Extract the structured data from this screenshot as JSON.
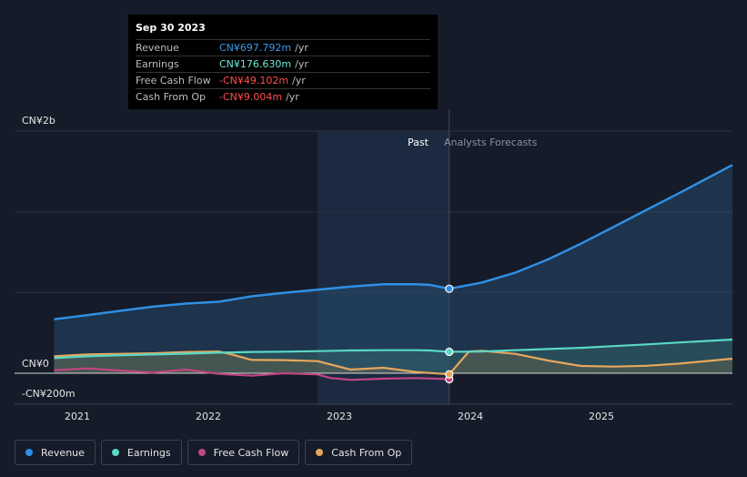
{
  "tooltip": {
    "date": "Sep 30 2023",
    "rows": [
      {
        "label": "Revenue",
        "value": "CN¥697.792m",
        "unit": "/yr",
        "color": "#3b9ae8"
      },
      {
        "label": "Earnings",
        "value": "CN¥176.630m",
        "unit": "/yr",
        "color": "#6ce8d0"
      },
      {
        "label": "Free Cash Flow",
        "value": "-CN¥49.102m",
        "unit": "/yr",
        "color": "#ff4d4d"
      },
      {
        "label": "Cash From Op",
        "value": "-CN¥9.004m",
        "unit": "/yr",
        "color": "#ff4d4d"
      }
    ]
  },
  "regions": {
    "past": "Past",
    "forecast": "Analysts Forecasts"
  },
  "chart_data": {
    "type": "line",
    "title": "",
    "y_axis_labels": [
      "CN¥2b",
      "CN¥0",
      "-CN¥200m"
    ],
    "ylim": [
      -200,
      2000
    ],
    "x_tick_labels": [
      "2021",
      "2022",
      "2023",
      "2024",
      "2025"
    ],
    "x_ticks": [
      2021.0,
      2022.0,
      2023.0,
      2024.0,
      2025.0
    ],
    "xlim": [
      2020.45,
      2025.9
    ],
    "past_start": 2022.75,
    "divider": 2023.75,
    "series": [
      {
        "name": "Revenue",
        "color": "#2f8fe4",
        "x": [
          2020.75,
          2021.0,
          2021.25,
          2021.5,
          2021.75,
          2022.0,
          2022.25,
          2022.5,
          2022.75,
          2023.0,
          2023.25,
          2023.5,
          2023.6,
          2023.75,
          2024.0,
          2024.25,
          2024.5,
          2024.75,
          2025.0,
          2025.25,
          2025.5,
          2025.9
        ],
        "y": [
          445,
          480,
          515,
          550,
          575,
          590,
          635,
          665,
          690,
          715,
          735,
          735,
          730,
          698,
          750,
          830,
          940,
          1070,
          1210,
          1350,
          1490,
          1720
        ]
      },
      {
        "name": "Earnings",
        "color": "#5ad8c6",
        "x": [
          2020.75,
          2021.0,
          2021.25,
          2021.5,
          2021.75,
          2022.0,
          2022.25,
          2022.5,
          2022.75,
          2023.0,
          2023.25,
          2023.5,
          2023.6,
          2023.75,
          2024.0,
          2024.25,
          2024.5,
          2024.75,
          2025.0,
          2025.25,
          2025.5,
          2025.9
        ],
        "y": [
          125,
          140,
          148,
          155,
          162,
          170,
          176,
          178,
          183,
          188,
          190,
          190,
          188,
          177,
          180,
          190,
          200,
          210,
          224,
          238,
          254,
          278
        ]
      },
      {
        "name": "Free Cash Flow",
        "color": "#c24583",
        "x": [
          2020.75,
          2021.0,
          2021.25,
          2021.5,
          2021.75,
          2022.0,
          2022.25,
          2022.5,
          2022.75,
          2022.85,
          2023.0,
          2023.25,
          2023.5,
          2023.75
        ],
        "y": [
          25,
          40,
          22,
          5,
          30,
          -5,
          -20,
          0,
          -10,
          -40,
          -55,
          -45,
          -40,
          -49
        ]
      },
      {
        "name": "Cash From Op",
        "color": "#e6a75c",
        "x": [
          2020.75,
          2021.0,
          2021.25,
          2021.5,
          2021.75,
          2022.0,
          2022.1,
          2022.25,
          2022.5,
          2022.75,
          2023.0,
          2023.25,
          2023.5,
          2023.75,
          2023.9,
          2024.0,
          2024.25,
          2024.5,
          2024.75,
          2025.0,
          2025.25,
          2025.5,
          2025.9
        ],
        "y": [
          140,
          155,
          160,
          165,
          175,
          180,
          155,
          110,
          108,
          100,
          30,
          45,
          10,
          -9,
          180,
          185,
          160,
          105,
          60,
          55,
          62,
          80,
          120
        ]
      }
    ]
  },
  "legend": [
    {
      "label": "Revenue",
      "color": "#2f8fe4"
    },
    {
      "label": "Earnings",
      "color": "#5ad8c6"
    },
    {
      "label": "Free Cash Flow",
      "color": "#c24583"
    },
    {
      "label": "Cash From Op",
      "color": "#e6a75c"
    }
  ]
}
